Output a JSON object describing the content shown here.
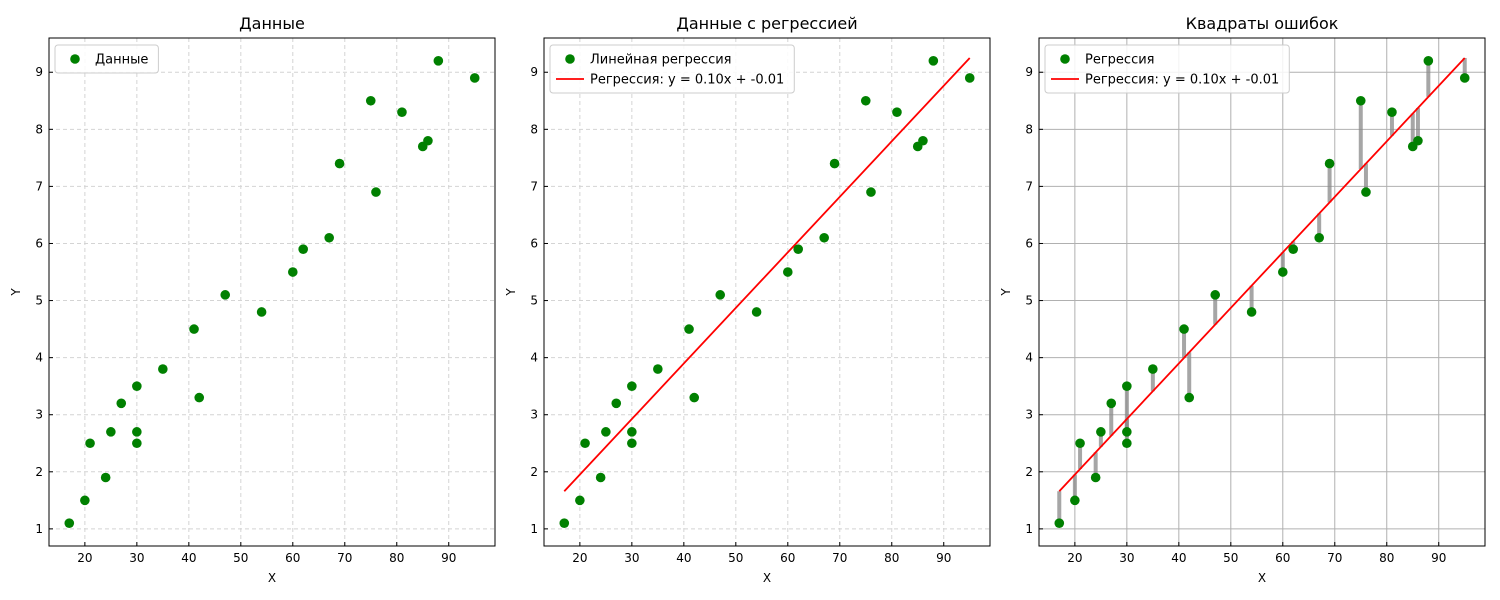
{
  "chart_data": [
    {
      "type": "scatter",
      "title": "Данные",
      "xlabel": "X",
      "ylabel": "Y",
      "xlim": [
        13.1,
        98.9
      ],
      "ylim": [
        0.7,
        9.6
      ],
      "xticks": [
        20,
        30,
        40,
        50,
        60,
        70,
        80,
        90
      ],
      "yticks": [
        1,
        2,
        3,
        4,
        5,
        6,
        7,
        8,
        9
      ],
      "grid": "dashed",
      "legend_position": "top-left",
      "series": [
        {
          "name": "Данные",
          "kind": "points",
          "color": "#008000",
          "x": [
            17,
            20,
            21,
            24,
            25,
            27,
            30,
            30,
            30,
            35,
            41,
            42,
            47,
            54,
            60,
            62,
            67,
            69,
            75,
            76,
            81,
            85,
            86,
            88,
            95
          ],
          "y": [
            1.1,
            1.5,
            2.5,
            1.9,
            2.7,
            3.2,
            3.5,
            2.7,
            2.5,
            3.8,
            4.5,
            3.3,
            5.1,
            4.8,
            5.5,
            5.9,
            6.1,
            7.4,
            8.5,
            6.9,
            8.3,
            7.7,
            7.8,
            9.2,
            8.9
          ]
        }
      ]
    },
    {
      "type": "scatter",
      "title": "Данные с регрессией",
      "xlabel": "X",
      "ylabel": "Y",
      "xlim": [
        13.1,
        98.9
      ],
      "ylim": [
        0.7,
        9.6
      ],
      "xticks": [
        20,
        30,
        40,
        50,
        60,
        70,
        80,
        90
      ],
      "yticks": [
        1,
        2,
        3,
        4,
        5,
        6,
        7,
        8,
        9
      ],
      "grid": "dashed",
      "legend_position": "top-left",
      "series": [
        {
          "name": "Линейная регрессия",
          "kind": "points",
          "color": "#008000",
          "x": [
            17,
            20,
            21,
            24,
            25,
            27,
            30,
            30,
            30,
            35,
            41,
            42,
            47,
            54,
            60,
            62,
            67,
            69,
            75,
            76,
            81,
            85,
            86,
            88,
            95
          ],
          "y": [
            1.1,
            1.5,
            2.5,
            1.9,
            2.7,
            3.2,
            3.5,
            2.7,
            2.5,
            3.8,
            4.5,
            3.3,
            5.1,
            4.8,
            5.5,
            5.9,
            6.1,
            7.4,
            8.5,
            6.9,
            8.3,
            7.7,
            7.8,
            9.2,
            8.9
          ]
        },
        {
          "name": "Регрессия: y = 0.10x + -0.01",
          "kind": "line",
          "color": "#ff0000",
          "x": [
            17,
            95
          ],
          "y": [
            1.66,
            9.25
          ]
        }
      ]
    },
    {
      "type": "scatter",
      "title": "Квадраты ошибок",
      "xlabel": "X",
      "ylabel": "Y",
      "xlim": [
        13.1,
        98.9
      ],
      "ylim": [
        0.7,
        9.6
      ],
      "xticks": [
        20,
        30,
        40,
        50,
        60,
        70,
        80,
        90
      ],
      "yticks": [
        1,
        2,
        3,
        4,
        5,
        6,
        7,
        8,
        9
      ],
      "grid": "solid",
      "legend_position": "top-left",
      "residuals": true,
      "series": [
        {
          "name": "Регрессия",
          "kind": "points",
          "color": "#008000",
          "x": [
            17,
            20,
            21,
            24,
            25,
            27,
            30,
            30,
            30,
            35,
            41,
            42,
            47,
            54,
            60,
            62,
            67,
            69,
            75,
            76,
            81,
            85,
            86,
            88,
            95
          ],
          "y": [
            1.1,
            1.5,
            2.5,
            1.9,
            2.7,
            3.2,
            3.5,
            2.7,
            2.5,
            3.8,
            4.5,
            3.3,
            5.1,
            4.8,
            5.5,
            5.9,
            6.1,
            7.4,
            8.5,
            6.9,
            8.3,
            7.7,
            7.8,
            9.2,
            8.9
          ]
        },
        {
          "name": "Регрессия: y = 0.10x + -0.01",
          "kind": "line",
          "color": "#ff0000",
          "x": [
            17,
            95
          ],
          "y": [
            1.66,
            9.25
          ]
        }
      ]
    }
  ]
}
